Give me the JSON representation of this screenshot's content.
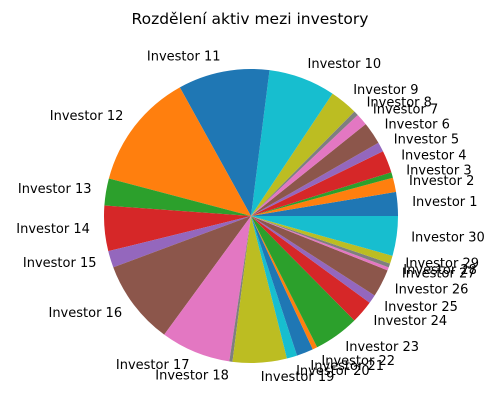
{
  "chart_data": {
    "type": "pie",
    "title": "Rozdělení aktiv mezi investory",
    "start_angle_deg": 0,
    "direction": "counterclockwise",
    "slices": [
      {
        "label": "Investor 1",
        "value": 3.0,
        "color": "#1f77b4"
      },
      {
        "label": "Investor 2",
        "value": 1.8,
        "color": "#ff7f0e"
      },
      {
        "label": "Investor 3",
        "value": 0.7,
        "color": "#2ca02c"
      },
      {
        "label": "Investor 4",
        "value": 2.8,
        "color": "#d62728"
      },
      {
        "label": "Investor 5",
        "value": 1.2,
        "color": "#9467bd"
      },
      {
        "label": "Investor 6",
        "value": 2.8,
        "color": "#8c564b"
      },
      {
        "label": "Investor 7",
        "value": 1.5,
        "color": "#e377c2"
      },
      {
        "label": "Investor 8",
        "value": 0.6,
        "color": "#7f7f7f"
      },
      {
        "label": "Investor 9",
        "value": 3.5,
        "color": "#bcbd22"
      },
      {
        "label": "Investor 10",
        "value": 8.4,
        "color": "#17becf"
      },
      {
        "label": "Investor 11",
        "value": 11.5,
        "color": "#1f77b4"
      },
      {
        "label": "Investor 12",
        "value": 14.7,
        "color": "#ff7f0e"
      },
      {
        "label": "Investor 13",
        "value": 3.4,
        "color": "#2ca02c"
      },
      {
        "label": "Investor 14",
        "value": 5.7,
        "color": "#d62728"
      },
      {
        "label": "Investor 15",
        "value": 2.1,
        "color": "#9467bd"
      },
      {
        "label": "Investor 16",
        "value": 10.6,
        "color": "#8c564b"
      },
      {
        "label": "Investor 17",
        "value": 8.8,
        "color": "#e377c2"
      },
      {
        "label": "Investor 18",
        "value": 0.4,
        "color": "#7f7f7f"
      },
      {
        "label": "Investor 19",
        "value": 6.8,
        "color": "#bcbd22"
      },
      {
        "label": "Investor 20",
        "value": 1.3,
        "color": "#17becf"
      },
      {
        "label": "Investor 21",
        "value": 2.1,
        "color": "#1f77b4"
      },
      {
        "label": "Investor 22",
        "value": 0.6,
        "color": "#ff7f0e"
      },
      {
        "label": "Investor 23",
        "value": 5.7,
        "color": "#2ca02c"
      },
      {
        "label": "Investor 24",
        "value": 2.9,
        "color": "#d62728"
      },
      {
        "label": "Investor 25",
        "value": 1.1,
        "color": "#9467bd"
      },
      {
        "label": "Investor 26",
        "value": 3.5,
        "color": "#8c564b"
      },
      {
        "label": "Investor 27",
        "value": 0.4,
        "color": "#e377c2"
      },
      {
        "label": "Investor 28",
        "value": 0.5,
        "color": "#7f7f7f"
      },
      {
        "label": "Investor 29",
        "value": 1.0,
        "color": "#bcbd22"
      },
      {
        "label": "Investor 30",
        "value": 5.0,
        "color": "#17becf"
      }
    ]
  }
}
